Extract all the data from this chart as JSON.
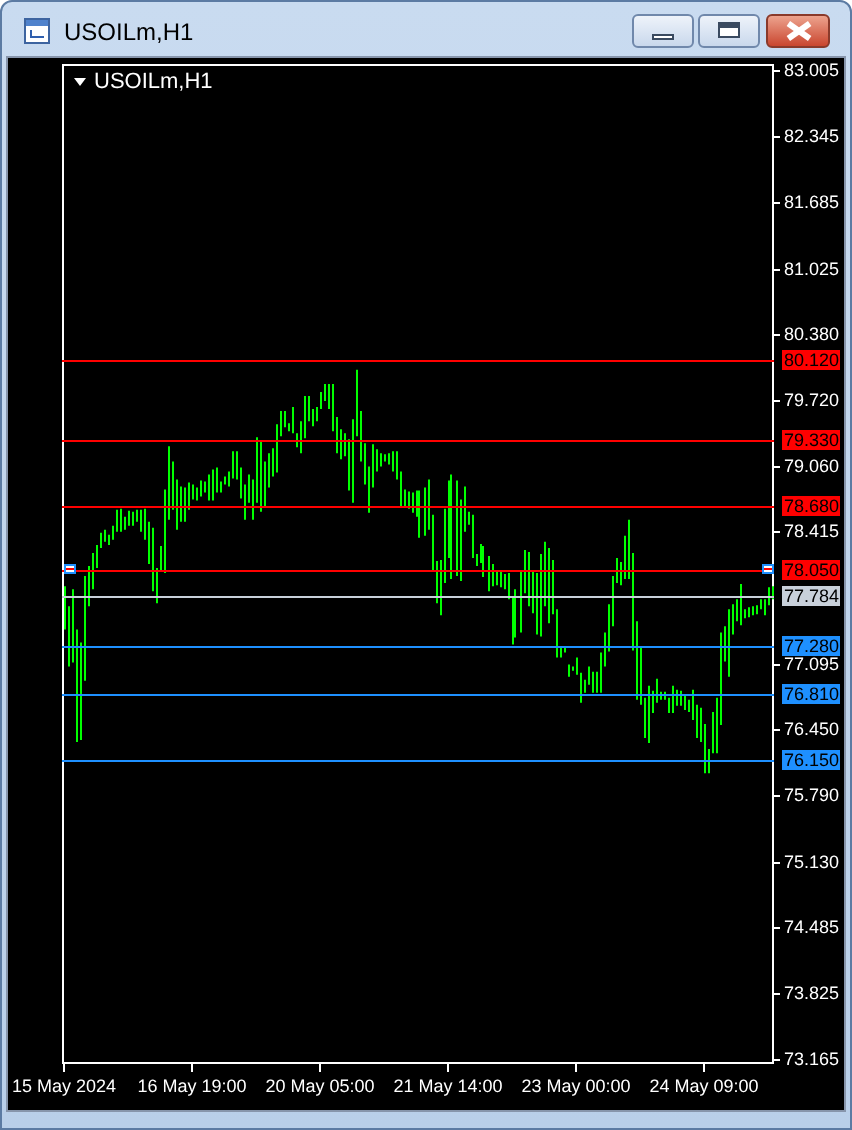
{
  "chart_data": {
    "type": "bar",
    "title": "USOILm,H1",
    "subtitle": "USOILm,H1",
    "categories": [
      "15 May 2024",
      null,
      null,
      null,
      null,
      null,
      null,
      null,
      null,
      null,
      null,
      null,
      null,
      null,
      null,
      null,
      null,
      null,
      null,
      null,
      null,
      null,
      null,
      null,
      null,
      null,
      null,
      null,
      null,
      null,
      null,
      null,
      "16 May 19:00",
      null,
      null,
      null,
      null,
      null,
      null,
      null,
      null,
      null,
      null,
      null,
      null,
      null,
      null,
      null,
      null,
      null,
      null,
      null,
      null,
      null,
      null,
      null,
      null,
      null,
      null,
      null,
      null,
      null,
      null,
      null,
      "20 May 05:00",
      null,
      null,
      null,
      null,
      null,
      null,
      null,
      null,
      null,
      null,
      null,
      null,
      null,
      null,
      null,
      null,
      null,
      null,
      null,
      null,
      null,
      null,
      null,
      null,
      null,
      null,
      null,
      null,
      null,
      null,
      null,
      "21 May 14:00",
      null,
      null,
      null,
      null,
      null,
      null,
      null,
      null,
      null,
      null,
      null,
      null,
      null,
      null,
      null,
      null,
      null,
      null,
      null,
      null,
      null,
      null,
      null,
      null,
      null,
      null,
      null,
      null,
      null,
      null,
      null,
      "23 May 00:00",
      null,
      null,
      null,
      null,
      null,
      null,
      null,
      null,
      null,
      null,
      null,
      null,
      null,
      null,
      null,
      null,
      null,
      null,
      null,
      null,
      null,
      null,
      null,
      null,
      null,
      null,
      null,
      null,
      null,
      null,
      null,
      "24 May 09:00",
      null,
      null,
      null,
      null,
      null,
      null,
      null,
      null,
      null,
      null,
      null,
      null,
      null,
      null,
      null,
      null,
      null
    ],
    "base": [
      77.45,
      77.08,
      77.12,
      76.33,
      76.35,
      76.94,
      77.68,
      77.85,
      78.06,
      78.26,
      78.32,
      78.29,
      78.34,
      78.42,
      78.42,
      78.44,
      78.48,
      78.48,
      78.52,
      78.42,
      78.34,
      78.1,
      77.83,
      77.71,
      78.04,
      78.01,
      78.54,
      78.64,
      78.44,
      78.52,
      78.52,
      78.64,
      78.74,
      78.73,
      78.77,
      78.81,
      78.73,
      78.73,
      78.81,
      78.81,
      78.89,
      78.87,
      78.95,
      78.94,
      78.75,
      78.54,
      78.71,
      78.54,
      78.71,
      78.62,
      78.67,
      78.86,
      78.97,
      79.01,
      79.37,
      79.46,
      79.42,
      79.4,
      79.26,
      79.2,
      79.35,
      79.52,
      79.47,
      79.52,
      79.64,
      79.72,
      79.64,
      79.42,
      79.2,
      79.14,
      79.17,
      78.83,
      78.71,
      79.37,
      79.12,
      78.89,
      78.61,
      78.86,
      79.02,
      79.07,
      79.12,
      79.09,
      79.02,
      78.94,
      78.67,
      78.67,
      78.65,
      78.61,
      78.57,
      78.36,
      78.38,
      78.44,
      78.02,
      77.71,
      77.59,
      77.91,
      78.16,
      77.95,
      77.98,
      77.93,
      78.42,
      78.49,
      78.16,
      78.08,
      78.11,
      77.97,
      77.83,
      77.88,
      77.89,
      77.87,
      77.85,
      77.75,
      77.3,
      77.37,
      77.42,
      77.81,
      77.68,
      77.61,
      77.4,
      77.38,
      77.68,
      77.51,
      77.6,
      77.17,
      77.17,
      77.22,
      76.98,
      77.04,
      77.0,
      76.72,
      76.82,
      76.9,
      76.82,
      76.82,
      76.82,
      77.08,
      77.23,
      77.48,
      77.91,
      77.89,
      77.95,
      77.95,
      77.24,
      76.75,
      76.7,
      76.37,
      76.32,
      76.62,
      76.72,
      76.75,
      76.75,
      76.62,
      76.62,
      76.69,
      76.69,
      76.65,
      76.63,
      76.55,
      76.37,
      76.33,
      76.02,
      76.02,
      76.22,
      76.22,
      76.5,
      77.13,
      76.98,
      77.4,
      77.53,
      77.49,
      77.56,
      77.57,
      77.59,
      77.6,
      77.65,
      77.59,
      77.69,
      77.75
    ],
    "values": [
      0.43,
      0.6,
      0.73,
      1.12,
      0.97,
      1.04,
      0.4,
      0.36,
      0.23,
      0.15,
      0.12,
      0.1,
      0.14,
      0.22,
      0.23,
      0.13,
      0.15,
      0.14,
      0.12,
      0.22,
      0.31,
      0.42,
      0.63,
      0.35,
      0.24,
      0.83,
      0.73,
      0.48,
      0.5,
      0.35,
      0.34,
      0.27,
      0.15,
      0.13,
      0.16,
      0.11,
      0.26,
      0.31,
      0.25,
      0.11,
      0.08,
      0.15,
      0.27,
      0.28,
      0.31,
      0.35,
      0.28,
      0.4,
      0.65,
      0.7,
      0.45,
      0.34,
      0.28,
      0.48,
      0.25,
      0.16,
      0.08,
      0.26,
      0.14,
      0.32,
      0.42,
      0.25,
      0.17,
      0.14,
      0.17,
      0.17,
      0.25,
      0.47,
      0.36,
      0.3,
      0.23,
      0.51,
      0.83,
      0.66,
      0.5,
      0.41,
      0.46,
      0.43,
      0.22,
      0.13,
      0.07,
      0.11,
      0.2,
      0.28,
      0.35,
      0.17,
      0.17,
      0.2,
      0.26,
      0.47,
      0.48,
      0.5,
      0.57,
      0.42,
      0.55,
      0.74,
      0.77,
      1.04,
      0.95,
      0.81,
      0.45,
      0.13,
      0.43,
      0.12,
      0.19,
      0.31,
      0.35,
      0.22,
      0.15,
      0.17,
      0.15,
      0.26,
      0.48,
      0.48,
      0.6,
      0.43,
      0.54,
      0.43,
      0.61,
      0.82,
      0.64,
      0.75,
      0.54,
      0.48,
      0.11,
      0.06,
      0.12,
      0.04,
      0.17,
      0.3,
      0.13,
      0.18,
      0.21,
      0.21,
      0.4,
      0.34,
      0.47,
      0.5,
      0.25,
      0.23,
      0.43,
      0.59,
      0.97,
      0.78,
      0.58,
      0.4,
      0.57,
      0.22,
      0.24,
      0.08,
      0.08,
      0.15,
      0.27,
      0.16,
      0.15,
      0.14,
      0.12,
      0.3,
      0.33,
      0.34,
      0.49,
      0.24,
      0.41,
      0.55,
      0.92,
      0.35,
      0.67,
      0.3,
      0.22,
      0.41,
      0.09,
      0.1,
      0.09,
      0.09,
      0.1,
      0.16,
      0.18,
      0.13
    ],
    "color": "#00ff00",
    "ylim": [
      73.13,
      83.07
    ],
    "yticks": [
      83.005,
      82.345,
      81.685,
      81.025,
      {
        "value": 80.38,
        "label": "80.380"
      },
      {
        "value": 79.72,
        "label": "79.720"
      },
      {
        "value": 79.06,
        "label": "79.060"
      },
      78.415,
      77.095,
      {
        "value": 76.45,
        "label": "76.450"
      },
      {
        "value": 75.79,
        "label": "75.790"
      },
      {
        "value": 75.13,
        "label": "75.130"
      },
      74.485,
      73.825,
      73.165
    ],
    "ref_lines": [
      {
        "axis": "y",
        "value": 80.12,
        "label": "80.120",
        "color": "#ff0000"
      },
      {
        "axis": "y",
        "value": 79.33,
        "label": "79.330",
        "color": "#ff0000"
      },
      {
        "axis": "y",
        "value": 78.68,
        "label": "78.680",
        "color": "#ff0000"
      },
      {
        "axis": "y",
        "value": 78.05,
        "label": "78.050",
        "color": "#ff0000"
      },
      {
        "axis": "y",
        "value": 77.784,
        "label": "77.784",
        "color": "#c8d0da"
      },
      {
        "axis": "y",
        "value": 77.28,
        "label": "77.280",
        "color": "#1e90ff"
      },
      {
        "axis": "y",
        "value": 76.81,
        "label": "76.810",
        "color": "#1e90ff"
      },
      {
        "axis": "y",
        "value": 76.15,
        "label": "76.150",
        "color": "#1e90ff"
      }
    ]
  }
}
